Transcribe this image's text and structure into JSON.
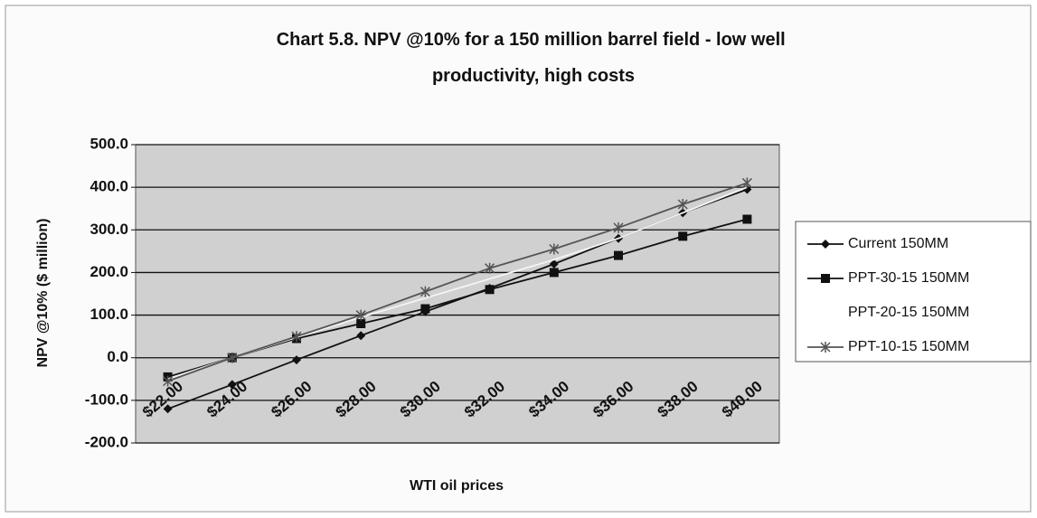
{
  "chart_data": {
    "type": "line",
    "title": "Chart 5.8. NPV @10% for a 150 million barrel field - low well productivity, high costs",
    "x_label": "WTI oil prices",
    "y_label": "NPV @10% ($ million)",
    "categories": [
      "$22.00",
      "$24.00",
      "$26.00",
      "$28.00",
      "$30.00",
      "$32.00",
      "$34.00",
      "$36.00",
      "$38.00",
      "$40.00"
    ],
    "series": [
      {
        "name": "Current 150MM",
        "color": "#111111",
        "marker": "diamond",
        "values": [
          -120,
          -63,
          -5,
          52,
          108,
          163,
          220,
          280,
          340,
          395
        ]
      },
      {
        "name": "PPT-30-15 150MM",
        "color": "#111111",
        "marker": "square",
        "values": [
          -45,
          0,
          45,
          80,
          115,
          160,
          200,
          240,
          285,
          325
        ]
      },
      {
        "name": "PPT-20-15 150MM",
        "color": "#f4f4f4",
        "marker": "none",
        "values": [
          -50,
          0,
          48,
          95,
          140,
          185,
          230,
          280,
          340,
          400
        ]
      },
      {
        "name": "PPT-10-15 150MM",
        "color": "#555555",
        "marker": "x",
        "values": [
          -55,
          0,
          50,
          100,
          155,
          210,
          255,
          305,
          360,
          410
        ]
      }
    ],
    "ylim": [
      -200,
      500
    ],
    "yticks": [
      {
        "value": -200,
        "label": "-200.0"
      },
      {
        "value": -100,
        "label": "-100.0"
      },
      {
        "value": 0,
        "label": "0.0"
      },
      {
        "value": 100,
        "label": "100.0"
      },
      {
        "value": 200,
        "label": "200.0"
      },
      {
        "value": 300,
        "label": "300.0"
      },
      {
        "value": 400,
        "label": "400.0"
      },
      {
        "value": 500,
        "label": "500.0"
      }
    ],
    "grid": true,
    "legend": "right"
  }
}
